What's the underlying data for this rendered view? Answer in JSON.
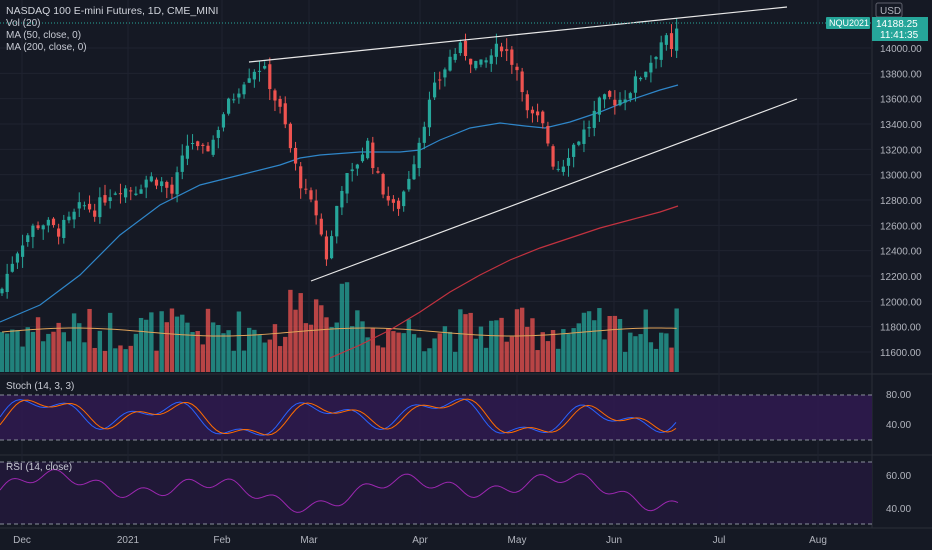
{
  "header": {
    "title": "NASDAQ 100 E-mini Futures, 1D, CME_MINI",
    "studies": [
      "Vol (20)",
      "MA (50, close, 0)",
      "MA (200, close, 0)"
    ],
    "currency": "USD"
  },
  "price_panel": {
    "last_price": "14188.25",
    "countdown": "11:41:35",
    "symbol_badge": "NQU2021",
    "ticks": [
      "14000.00",
      "13800.00",
      "13600.00",
      "13400.00",
      "13200.00",
      "13000.00",
      "12800.00",
      "12600.00",
      "12400.00",
      "12200.00",
      "12000.00",
      "11800.00",
      "11600.00"
    ]
  },
  "stoch_panel": {
    "label": "Stoch (14, 3, 3)",
    "ticks": [
      "80.00",
      "40.00"
    ]
  },
  "rsi_panel": {
    "label": "RSI (14, close)",
    "ticks": [
      "60.00",
      "40.00"
    ]
  },
  "time_axis": [
    "Dec",
    "2021",
    "Feb",
    "Mar",
    "Apr",
    "May",
    "Jun",
    "Jul",
    "Aug"
  ],
  "colors": {
    "background": "#151924",
    "up": "#26a69a",
    "down": "#ef5350",
    "ma50": "#2f86c9",
    "ma200": "#c2323f",
    "badge": "#26a69a",
    "stoch_band": "#2e1a4e",
    "rsi_line": "#9c27b0"
  },
  "chart_data": {
    "type": "candlestick",
    "title": "NASDAQ 100 E-mini Futures, 1D, CME_MINI",
    "ylim": [
      11500,
      14300
    ],
    "last": 14188.25,
    "x_labels": [
      "Dec",
      "2021",
      "Feb",
      "Mar",
      "Apr",
      "May",
      "Jun",
      "Jul",
      "Aug"
    ],
    "close_trace": [
      [
        "Dec",
        12100
      ],
      [
        "2021",
        12900
      ],
      [
        "Feb",
        13200
      ],
      [
        "Feb",
        13850
      ],
      [
        "Mar",
        12550
      ],
      [
        "Mar",
        13100
      ],
      [
        "Apr",
        13800
      ],
      [
        "Apr",
        14050
      ],
      [
        "May",
        13600
      ],
      [
        "May",
        13100
      ],
      [
        "Jun",
        13650
      ],
      [
        "Jun",
        14188.25
      ]
    ],
    "trendlines": [
      {
        "name": "upper",
        "from": [
          "Feb",
          13880
        ],
        "to": [
          "Jul",
          14280
        ]
      },
      {
        "name": "lower",
        "from": [
          "Mar",
          12160
        ],
        "to": [
          "Jul",
          13600
        ]
      }
    ]
  }
}
